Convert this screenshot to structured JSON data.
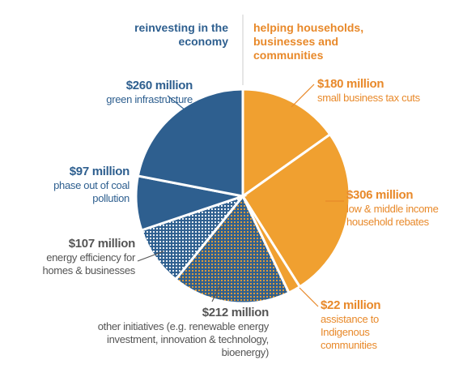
{
  "chart_data": {
    "type": "pie",
    "left_heading": "reinvesting in the economy",
    "right_heading": "helping households, businesses and communities",
    "categories": [
      "small business tax cuts",
      "low & middle income household rebates",
      "assistance to Indigenous communities",
      "other initiatives (e.g. renewable energy investment, innovation & technology, bioenergy)",
      "energy efficiency for homes & businesses",
      "phase out of coal pollution",
      "green infrastructure"
    ],
    "values": [
      180,
      306,
      22,
      212,
      107,
      97,
      260
    ],
    "value_labels": [
      "$180 million",
      "$306 million",
      "$22 million",
      "$212 million",
      "$107 million",
      "$97 million",
      "$260 million"
    ],
    "colors": [
      "#f0a030",
      "#f0a030",
      "#f0a030",
      "#2e5f8f",
      "#2e5f8f",
      "#2e5f8f",
      "#2e5f8f"
    ],
    "dot_colors": [
      null,
      null,
      null,
      "#f0a030",
      "#ffffff",
      null,
      null
    ]
  }
}
